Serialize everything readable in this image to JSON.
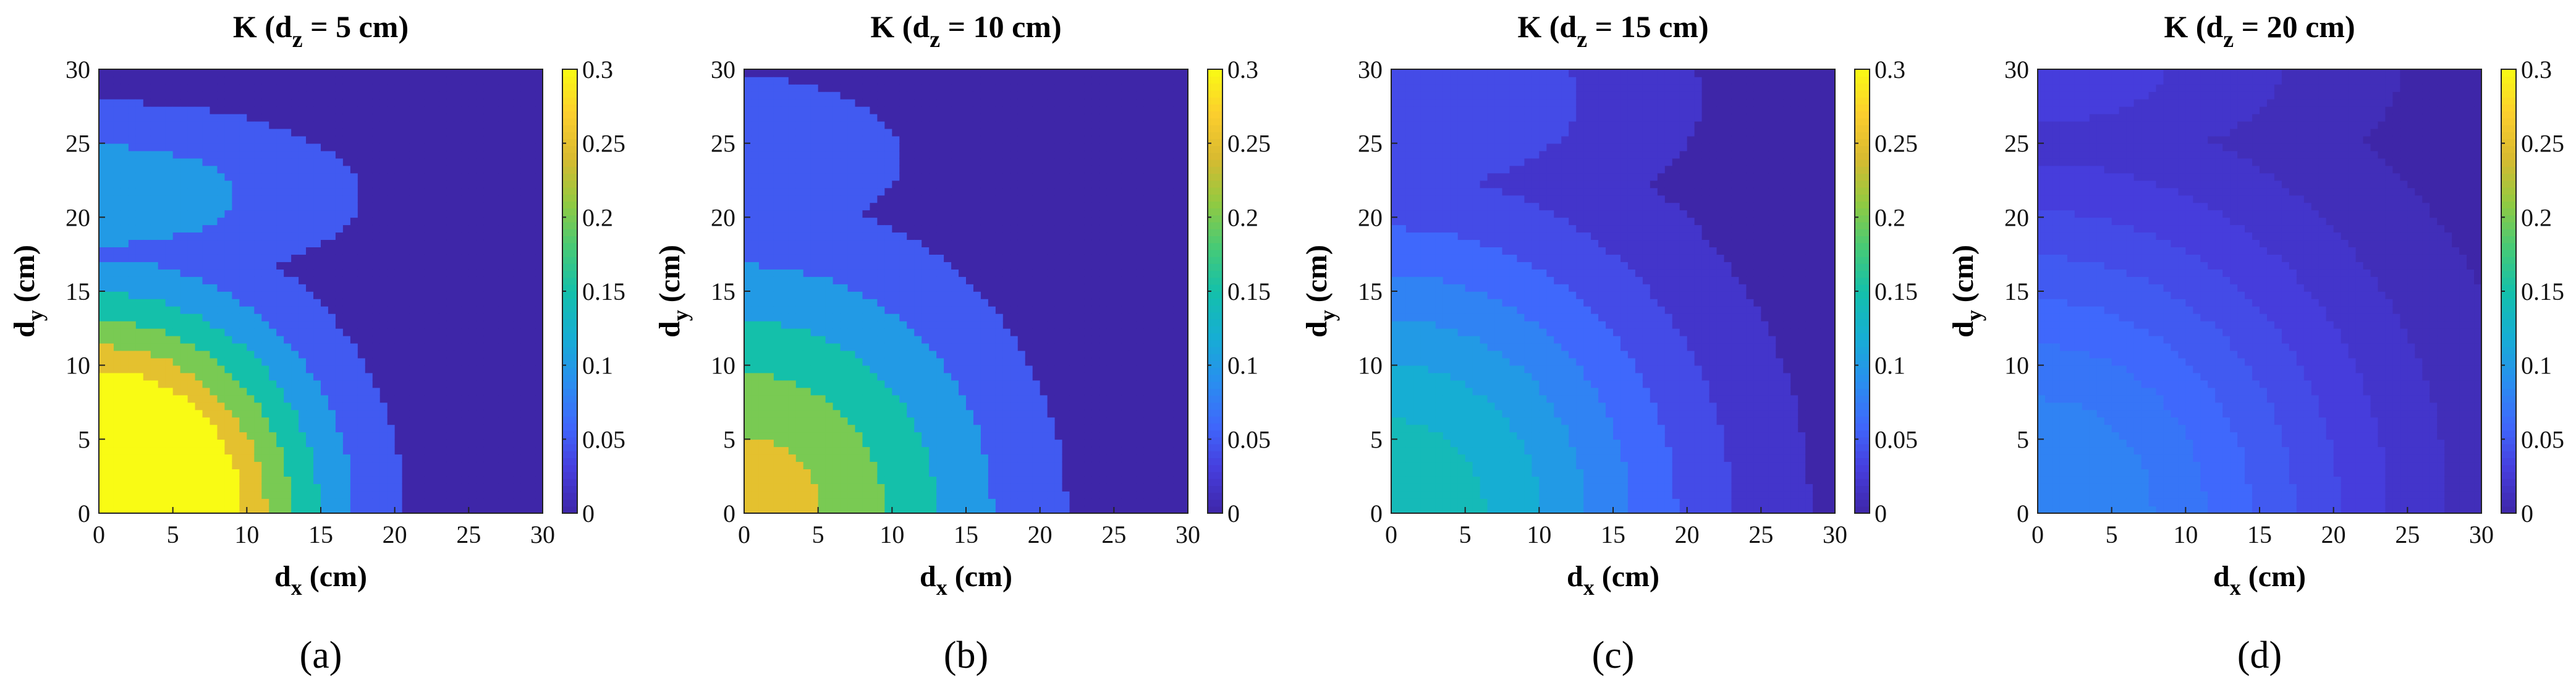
{
  "chart_data": [
    {
      "type": "contour",
      "title": "K (d",
      "title_sub": "z",
      "title_tail": " = 5 cm)",
      "xlabel": "d",
      "xlabel_sub": "x",
      "xlabel_unit": " (cm)",
      "ylabel": "d",
      "ylabel_sub": "y",
      "ylabel_unit": " (cm)",
      "xlim": [
        0,
        30
      ],
      "ylim": [
        0,
        30
      ],
      "xticks": [
        "0",
        "5",
        "10",
        "15",
        "20",
        "25",
        "30"
      ],
      "yticks": [
        "0",
        "5",
        "10",
        "15",
        "20",
        "25",
        "30"
      ],
      "clim": [
        0,
        0.3
      ],
      "colorbar_ticks": [
        "0",
        "0.05",
        "0.1",
        "0.15",
        "0.2",
        "0.25",
        "0.3"
      ],
      "contour_levels": [
        0.05,
        0.1,
        0.15,
        0.2,
        0.25,
        0.3,
        0.35,
        0.4,
        0.45
      ],
      "panel_label": "(a)",
      "dz_cm": 5
    },
    {
      "type": "contour",
      "title": "K (d",
      "title_sub": "z",
      "title_tail": " = 10 cm)",
      "xlabel": "d",
      "xlabel_sub": "x",
      "xlabel_unit": " (cm)",
      "ylabel": "d",
      "ylabel_sub": "y",
      "ylabel_unit": " (cm)",
      "xlim": [
        0,
        30
      ],
      "ylim": [
        0,
        30
      ],
      "xticks": [
        "0",
        "5",
        "10",
        "15",
        "20",
        "25",
        "30"
      ],
      "yticks": [
        "0",
        "5",
        "10",
        "15",
        "20",
        "25",
        "30"
      ],
      "clim": [
        0,
        0.3
      ],
      "colorbar_ticks": [
        "0",
        "0.05",
        "0.1",
        "0.15",
        "0.2",
        "0.25",
        "0.3"
      ],
      "contour_levels": [
        0.05,
        0.1,
        0.15,
        0.2,
        0.25
      ],
      "panel_label": "(b)",
      "dz_cm": 10
    },
    {
      "type": "contour",
      "title": "K (d",
      "title_sub": "z",
      "title_tail": " = 15 cm)",
      "xlabel": "d",
      "xlabel_sub": "x",
      "xlabel_unit": " (cm)",
      "ylabel": "d",
      "ylabel_sub": "y",
      "ylabel_unit": " (cm)",
      "xlim": [
        0,
        30
      ],
      "ylim": [
        0,
        30
      ],
      "xticks": [
        "0",
        "5",
        "10",
        "15",
        "20",
        "25",
        "30"
      ],
      "yticks": [
        "0",
        "5",
        "10",
        "15",
        "20",
        "25",
        "30"
      ],
      "clim": [
        0,
        0.3
      ],
      "colorbar_ticks": [
        "0",
        "0.05",
        "0.1",
        "0.15",
        "0.2",
        "0.25",
        "0.3"
      ],
      "contour_levels": [
        0.02,
        0.04,
        0.06,
        0.08,
        0.1,
        0.12,
        0.14
      ],
      "panel_label": "(c)",
      "dz_cm": 15
    },
    {
      "type": "contour",
      "title": "K (d",
      "title_sub": "z",
      "title_tail": " = 20 cm)",
      "xlabel": "d",
      "xlabel_sub": "x",
      "xlabel_unit": " (cm)",
      "ylabel": "d",
      "ylabel_sub": "y",
      "ylabel_unit": " (cm)",
      "xlim": [
        0,
        30
      ],
      "ylim": [
        0,
        30
      ],
      "xticks": [
        "0",
        "5",
        "10",
        "15",
        "20",
        "25",
        "30"
      ],
      "yticks": [
        "0",
        "5",
        "10",
        "15",
        "20",
        "25",
        "30"
      ],
      "clim": [
        0,
        0.3
      ],
      "colorbar_ticks": [
        "0",
        "0.05",
        "0.1",
        "0.15",
        "0.2",
        "0.25",
        "0.3"
      ],
      "contour_levels": [
        0.01,
        0.02,
        0.03,
        0.04,
        0.05,
        0.06,
        0.07,
        0.08
      ],
      "panel_label": "(d)",
      "dz_cm": 20
    }
  ]
}
